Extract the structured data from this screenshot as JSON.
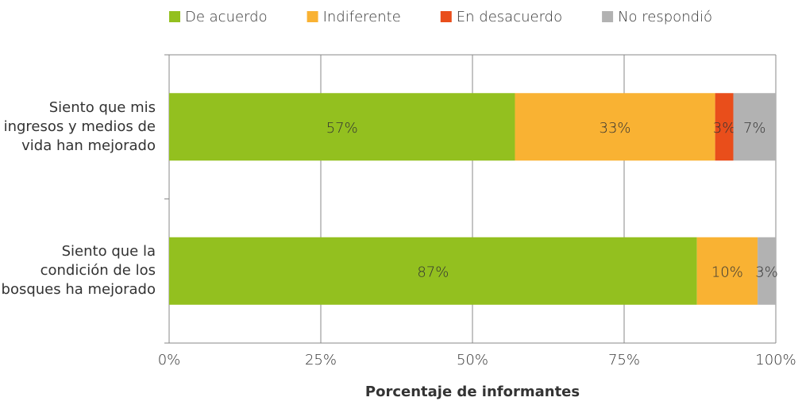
{
  "chart_data": {
    "type": "stacked_barh",
    "categories": [
      "Siento que mis ingresos y medios de vida han mejorado",
      "Siento que la condición de los bosques ha mejorado"
    ],
    "series": [
      {
        "name": "De acuerdo",
        "color": "#93c01f",
        "values": [
          57,
          87
        ],
        "value_labels": [
          "57%",
          "87%"
        ]
      },
      {
        "name": "Indiferente",
        "color": "#f9b233",
        "values": [
          33,
          10
        ],
        "value_labels": [
          "33%",
          "10%"
        ]
      },
      {
        "name": "En desacuerdo",
        "color": "#e94e1b",
        "values": [
          3,
          null
        ],
        "value_labels": [
          "3%",
          null
        ]
      },
      {
        "name": "No respondió",
        "color": "#b2b2b2",
        "values": [
          7,
          3
        ],
        "value_labels": [
          "7%",
          "3%"
        ]
      }
    ],
    "xlabel": "Porcentaje de informantes",
    "xlim": [
      0,
      100
    ],
    "xticks": [
      {
        "value": 0,
        "label": "0%"
      },
      {
        "value": 25,
        "label": "25%"
      },
      {
        "value": 50,
        "label": "50%"
      },
      {
        "value": 75,
        "label": "75%"
      },
      {
        "value": 100,
        "label": "100%"
      }
    ],
    "grid": true,
    "legend": "top"
  }
}
